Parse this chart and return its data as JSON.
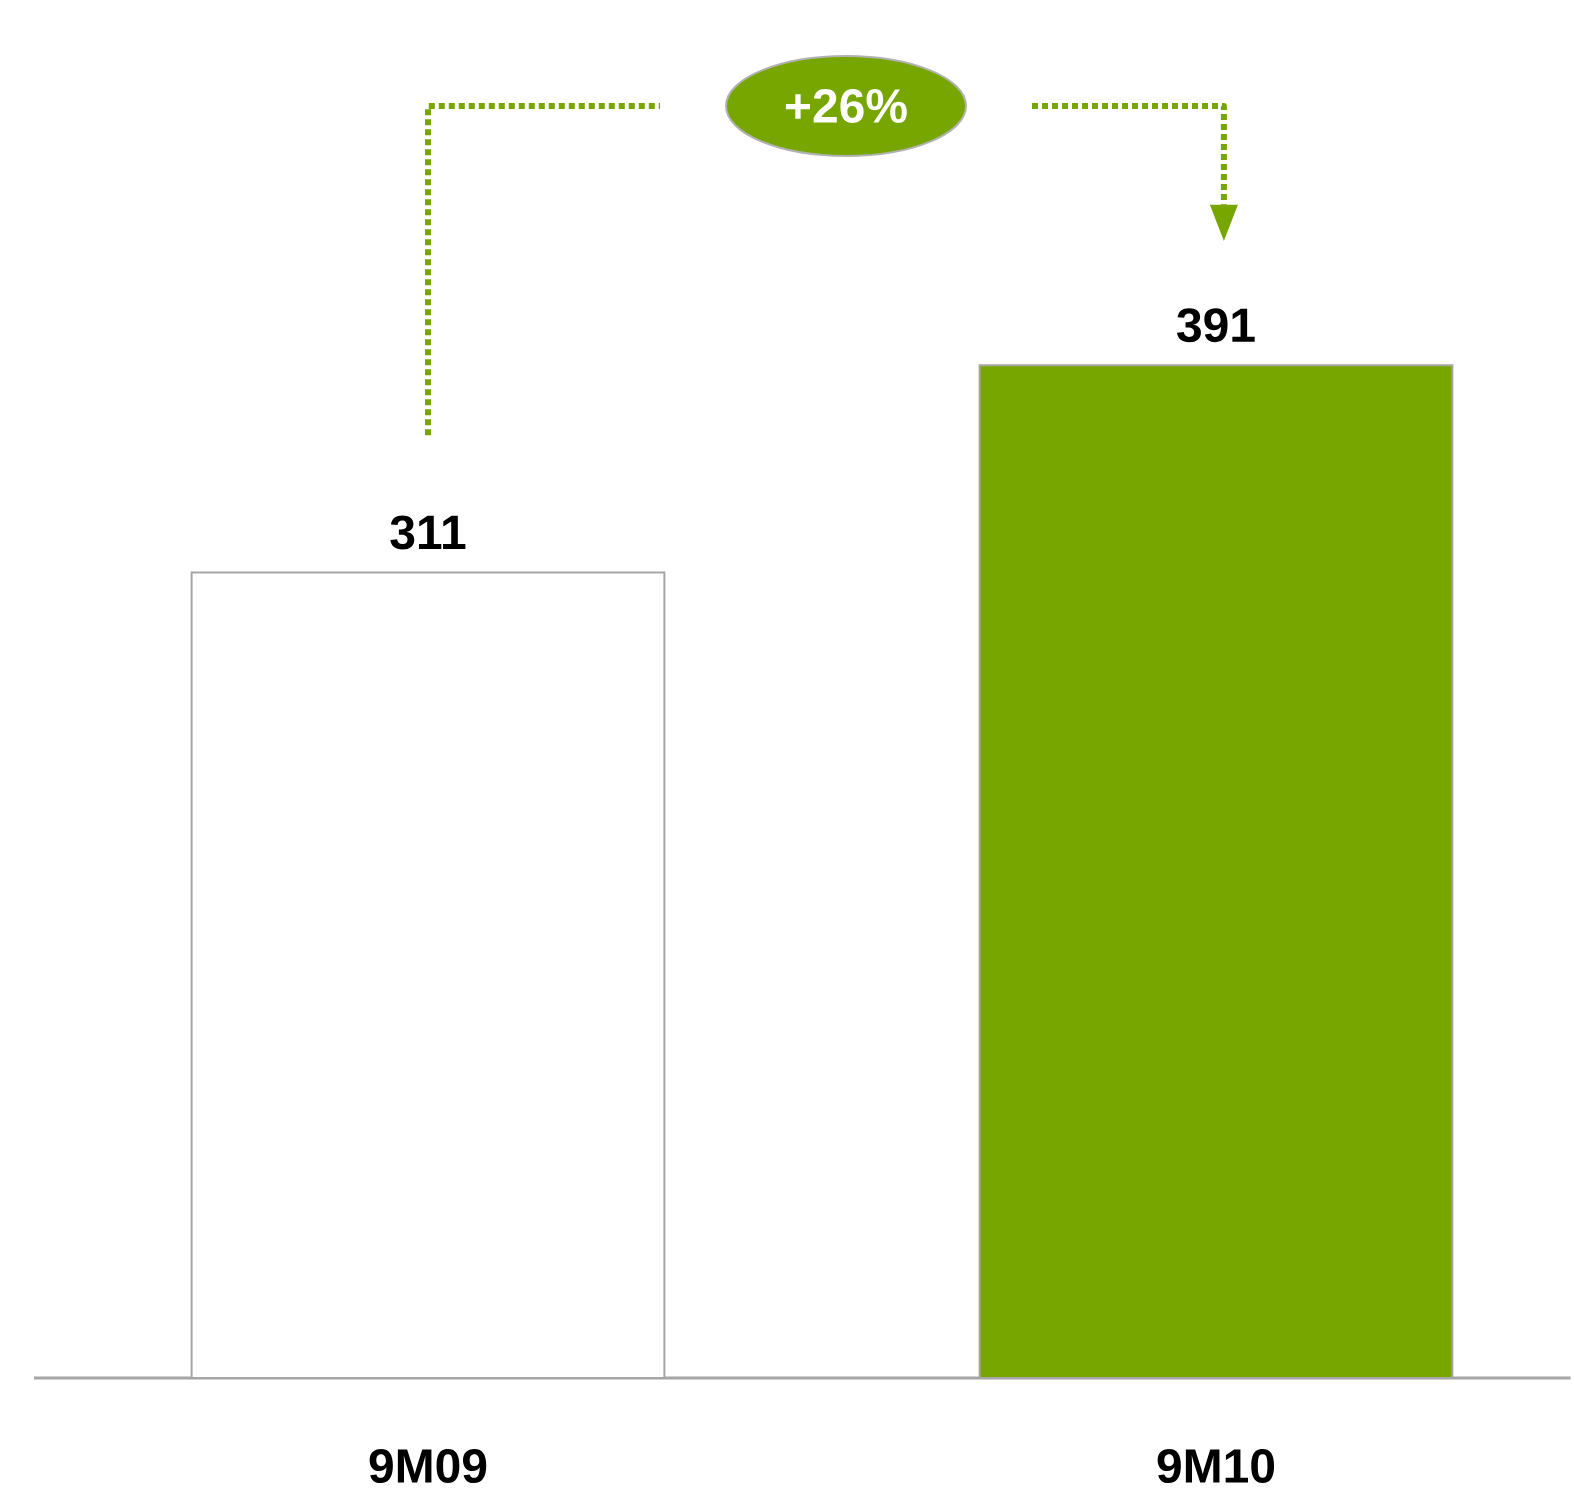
{
  "chart_data": {
    "type": "bar",
    "categories": [
      "9M09",
      "9M10"
    ],
    "values": [
      311,
      391
    ],
    "colors": [
      "#ffffff",
      "#78a600"
    ],
    "tick_labels": "x",
    "data_labels": true,
    "annotations": [
      "+26%"
    ]
  }
}
